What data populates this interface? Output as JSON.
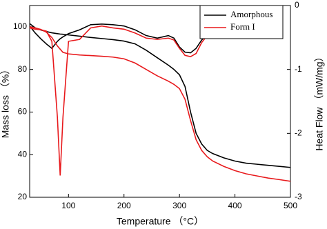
{
  "chart_data": {
    "type": "line",
    "x_label": "Temperature （°C）",
    "y_label": "Mass loss （%）",
    "y2_label": "Heat Flow （mW/mg）",
    "x": [
      30,
      40,
      50,
      60,
      70,
      80,
      85,
      90,
      100,
      120,
      140,
      160,
      180,
      200,
      220,
      240,
      260,
      280,
      290,
      300,
      310,
      320,
      330,
      340,
      350,
      360,
      380,
      400,
      420,
      440,
      460,
      480,
      500
    ],
    "series": [
      {
        "name": "Amorphous",
        "color": "#000000",
        "values": [
          101.5,
          99.5,
          98.5,
          97.8,
          97.2,
          96.8,
          96.6,
          96.5,
          96.2,
          95.6,
          95,
          94.5,
          94,
          93.3,
          92,
          89,
          85.5,
          82,
          80,
          77.5,
          72,
          60,
          50,
          45,
          42,
          40.5,
          38.5,
          37,
          36,
          35.5,
          35,
          34.5,
          34
        ],
        "y2_values": [
          -0.32,
          -0.43,
          -0.52,
          -0.6,
          -0.67,
          -0.56,
          -0.52,
          -0.49,
          -0.44,
          -0.38,
          -0.3,
          -0.29,
          -0.3,
          -0.32,
          -0.38,
          -0.47,
          -0.51,
          -0.47,
          -0.51,
          -0.65,
          -0.73,
          -0.74,
          -0.67,
          -0.54,
          -0.45,
          null,
          null,
          null,
          null,
          null,
          null,
          null,
          null
        ]
      },
      {
        "name": "Form I",
        "color": "#e8191c",
        "values": [
          100,
          99.5,
          98.8,
          97.5,
          95,
          91,
          89.5,
          88,
          87.3,
          86.8,
          86.5,
          86.2,
          85.8,
          85,
          83,
          80,
          77,
          74.5,
          73,
          71,
          66,
          56,
          47,
          42,
          39,
          37,
          34.5,
          32.5,
          31,
          30,
          29,
          28.3,
          27.5
        ],
        "y2_values": [
          -0.35,
          -0.37,
          -0.38,
          -0.4,
          -0.56,
          -1.75,
          -2.66,
          -1.75,
          -0.56,
          -0.53,
          -0.35,
          -0.32,
          -0.35,
          -0.37,
          -0.43,
          -0.51,
          -0.53,
          -0.51,
          -0.54,
          -0.67,
          -0.78,
          -0.8,
          -0.75,
          -0.58,
          -0.47,
          null,
          null,
          null,
          null,
          null,
          null,
          null,
          null
        ]
      }
    ],
    "xlim": [
      30,
      500
    ],
    "xticks": [
      100,
      200,
      300,
      400,
      500
    ],
    "ylim": [
      20,
      110
    ],
    "yticks": [
      20,
      40,
      60,
      80,
      100
    ],
    "y2lim": [
      -3,
      0
    ],
    "y2ticks": [
      -3,
      -2,
      -1,
      0
    ],
    "legend": "upper right"
  }
}
